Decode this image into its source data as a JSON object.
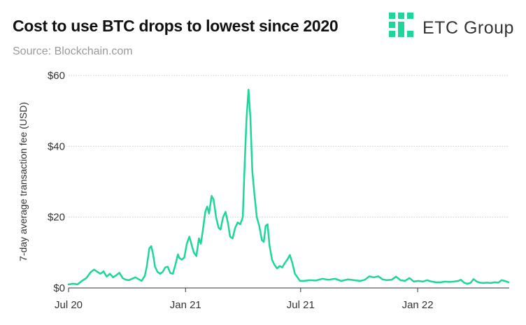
{
  "header": {
    "title": "Cost to use BTC drops to lowest since 2020",
    "subtitle": "Source: Blockchain.com"
  },
  "logo": {
    "text": "ETC Group",
    "icon": "etc-group-logo-icon"
  },
  "colors": {
    "line": "#1ed69b",
    "grid": "#cccccc",
    "axis": "#333333",
    "logo": "#1ed69b"
  },
  "chart_data": {
    "type": "line",
    "title": "",
    "xlabel": "",
    "ylabel": "7-day average transaction fee (USD)",
    "ylim": [
      0,
      60
    ],
    "xlim": [
      "2020-07-01",
      "2022-05-25"
    ],
    "y_ticks": [
      {
        "value": 0,
        "label": "$0"
      },
      {
        "value": 20,
        "label": "$20"
      },
      {
        "value": 40,
        "label": "$40"
      },
      {
        "value": 60,
        "label": "$60"
      }
    ],
    "x_ticks": [
      {
        "date": "2020-07-01",
        "label": "Jul 20"
      },
      {
        "date": "2021-01-01",
        "label": "Jan 21"
      },
      {
        "date": "2021-07-01",
        "label": "Jul 21"
      },
      {
        "date": "2022-01-01",
        "label": "Jan 22"
      }
    ],
    "grid": "horizontal",
    "series": [
      {
        "points": [
          [
            "2020-07-01",
            1.0
          ],
          [
            "2020-07-08",
            1.2
          ],
          [
            "2020-07-15",
            1.0
          ],
          [
            "2020-07-22",
            2.0
          ],
          [
            "2020-07-29",
            2.8
          ],
          [
            "2020-08-05",
            4.5
          ],
          [
            "2020-08-10",
            5.2
          ],
          [
            "2020-08-15",
            4.6
          ],
          [
            "2020-08-20",
            4.0
          ],
          [
            "2020-08-25",
            4.7
          ],
          [
            "2020-08-30",
            3.2
          ],
          [
            "2020-09-04",
            4.0
          ],
          [
            "2020-09-09",
            3.0
          ],
          [
            "2020-09-14",
            3.6
          ],
          [
            "2020-09-19",
            4.3
          ],
          [
            "2020-09-24",
            2.8
          ],
          [
            "2020-09-29",
            2.3
          ],
          [
            "2020-10-04",
            2.2
          ],
          [
            "2020-10-09",
            2.6
          ],
          [
            "2020-10-14",
            3.0
          ],
          [
            "2020-10-19",
            2.5
          ],
          [
            "2020-10-24",
            2.0
          ],
          [
            "2020-10-29",
            3.5
          ],
          [
            "2020-11-01",
            6.0
          ],
          [
            "2020-11-05",
            11.2
          ],
          [
            "2020-11-08",
            11.8
          ],
          [
            "2020-11-11",
            9.5
          ],
          [
            "2020-11-14",
            6.0
          ],
          [
            "2020-11-18",
            4.5
          ],
          [
            "2020-11-22",
            4.0
          ],
          [
            "2020-11-26",
            4.5
          ],
          [
            "2020-11-30",
            5.8
          ],
          [
            "2020-12-04",
            6.0
          ],
          [
            "2020-12-08",
            4.2
          ],
          [
            "2020-12-12",
            4.0
          ],
          [
            "2020-12-16",
            6.5
          ],
          [
            "2020-12-20",
            9.5
          ],
          [
            "2020-12-22",
            8.5
          ],
          [
            "2020-12-26",
            8.0
          ],
          [
            "2020-12-30",
            8.6
          ],
          [
            "2021-01-03",
            12.5
          ],
          [
            "2021-01-07",
            14.5
          ],
          [
            "2021-01-10",
            12.5
          ],
          [
            "2021-01-14",
            10.0
          ],
          [
            "2021-01-18",
            9.0
          ],
          [
            "2021-01-22",
            14.0
          ],
          [
            "2021-01-25",
            12.5
          ],
          [
            "2021-01-28",
            16.0
          ],
          [
            "2021-02-01",
            21.5
          ],
          [
            "2021-02-04",
            23.0
          ],
          [
            "2021-02-07",
            21.0
          ],
          [
            "2021-02-11",
            26.0
          ],
          [
            "2021-02-14",
            25.0
          ],
          [
            "2021-02-18",
            20.0
          ],
          [
            "2021-02-22",
            17.0
          ],
          [
            "2021-02-25",
            16.5
          ],
          [
            "2021-03-01",
            20.0
          ],
          [
            "2021-03-05",
            21.5
          ],
          [
            "2021-03-09",
            18.0
          ],
          [
            "2021-03-12",
            14.5
          ],
          [
            "2021-03-16",
            14.0
          ],
          [
            "2021-03-20",
            17.0
          ],
          [
            "2021-03-24",
            18.5
          ],
          [
            "2021-03-28",
            18.0
          ],
          [
            "2021-04-01",
            20.0
          ],
          [
            "2021-04-04",
            35.0
          ],
          [
            "2021-04-07",
            48.0
          ],
          [
            "2021-04-10",
            56.0
          ],
          [
            "2021-04-13",
            48.0
          ],
          [
            "2021-04-16",
            33.0
          ],
          [
            "2021-04-19",
            27.0
          ],
          [
            "2021-04-23",
            20.0
          ],
          [
            "2021-04-27",
            17.5
          ],
          [
            "2021-05-01",
            13.5
          ],
          [
            "2021-05-04",
            13.0
          ],
          [
            "2021-05-07",
            17.5
          ],
          [
            "2021-05-10",
            18.0
          ],
          [
            "2021-05-13",
            12.0
          ],
          [
            "2021-05-17",
            8.0
          ],
          [
            "2021-05-21",
            6.5
          ],
          [
            "2021-05-25",
            5.5
          ],
          [
            "2021-05-29",
            6.2
          ],
          [
            "2021-06-02",
            5.8
          ],
          [
            "2021-06-06",
            7.0
          ],
          [
            "2021-06-10",
            8.0
          ],
          [
            "2021-06-14",
            9.3
          ],
          [
            "2021-06-18",
            7.0
          ],
          [
            "2021-06-22",
            4.0
          ],
          [
            "2021-06-26",
            3.0
          ],
          [
            "2021-06-30",
            2.0
          ],
          [
            "2021-07-06",
            2.0
          ],
          [
            "2021-07-15",
            2.2
          ],
          [
            "2021-07-25",
            2.1
          ],
          [
            "2021-08-04",
            2.6
          ],
          [
            "2021-08-14",
            2.3
          ],
          [
            "2021-08-24",
            2.6
          ],
          [
            "2021-09-03",
            2.0
          ],
          [
            "2021-09-13",
            2.4
          ],
          [
            "2021-09-23",
            2.2
          ],
          [
            "2021-10-03",
            2.0
          ],
          [
            "2021-10-10",
            2.3
          ],
          [
            "2021-10-17",
            3.3
          ],
          [
            "2021-10-24",
            3.0
          ],
          [
            "2021-10-31",
            3.3
          ],
          [
            "2021-11-07",
            2.4
          ],
          [
            "2021-11-14",
            2.2
          ],
          [
            "2021-11-21",
            2.3
          ],
          [
            "2021-11-28",
            3.2
          ],
          [
            "2021-12-05",
            2.2
          ],
          [
            "2021-12-12",
            2.0
          ],
          [
            "2021-12-19",
            2.8
          ],
          [
            "2021-12-26",
            1.8
          ],
          [
            "2022-01-02",
            2.0
          ],
          [
            "2022-01-09",
            1.8
          ],
          [
            "2022-01-16",
            2.2
          ],
          [
            "2022-01-23",
            1.8
          ],
          [
            "2022-01-30",
            1.6
          ],
          [
            "2022-02-06",
            1.6
          ],
          [
            "2022-02-13",
            1.8
          ],
          [
            "2022-02-20",
            1.7
          ],
          [
            "2022-02-27",
            1.8
          ],
          [
            "2022-03-06",
            2.0
          ],
          [
            "2022-03-10",
            2.3
          ],
          [
            "2022-03-15",
            1.5
          ],
          [
            "2022-03-20",
            1.2
          ],
          [
            "2022-03-25",
            1.4
          ],
          [
            "2022-03-30",
            2.5
          ],
          [
            "2022-04-04",
            1.8
          ],
          [
            "2022-04-09",
            1.5
          ],
          [
            "2022-04-14",
            1.4
          ],
          [
            "2022-04-20",
            1.5
          ],
          [
            "2022-04-26",
            1.4
          ],
          [
            "2022-05-02",
            1.6
          ],
          [
            "2022-05-08",
            1.5
          ],
          [
            "2022-05-13",
            2.2
          ],
          [
            "2022-05-18",
            2.0
          ],
          [
            "2022-05-24",
            1.6
          ]
        ]
      }
    ]
  }
}
